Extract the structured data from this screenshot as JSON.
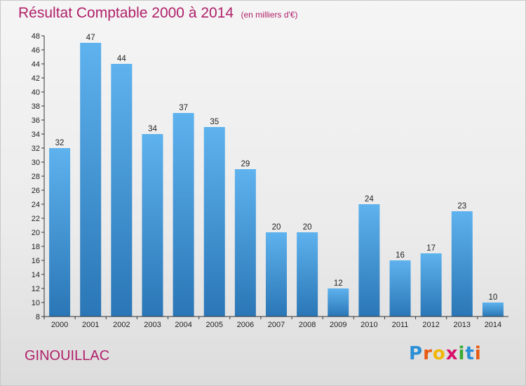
{
  "chart_data": {
    "type": "bar",
    "title": "Résultat Comptable 2000 à 2014",
    "subtitle": "(en milliers d'€)",
    "categories": [
      "2000",
      "2001",
      "2002",
      "2003",
      "2004",
      "2005",
      "2006",
      "2007",
      "2008",
      "2009",
      "2010",
      "2011",
      "2012",
      "2013",
      "2014"
    ],
    "values": [
      32,
      47,
      44,
      34,
      37,
      35,
      29,
      20,
      20,
      12,
      24,
      16,
      17,
      23,
      10
    ],
    "ylim": [
      8,
      48
    ],
    "ytick_step": 2,
    "grid": false,
    "xlabel": "",
    "ylabel": ""
  },
  "commune": "GINOUILLAC",
  "logo": {
    "letters": [
      "P",
      "r",
      "o",
      "x",
      "i",
      "t",
      "i"
    ],
    "colors": [
      "#2a8fd6",
      "#e85a12",
      "#f2b705",
      "#d8106a",
      "#3aa935",
      "#2a8fd6",
      "#e85a12"
    ]
  },
  "colors": {
    "bar_top": "#5eb2ee",
    "bar_bottom": "#2a76b6",
    "title": "#b0206a",
    "axis": "#333333"
  }
}
